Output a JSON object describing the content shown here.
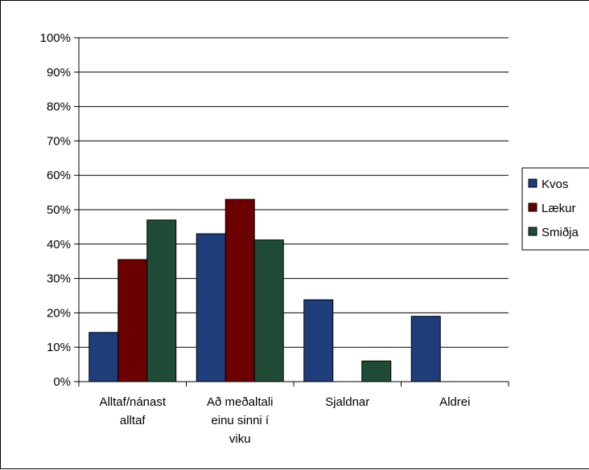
{
  "chart_data": {
    "type": "bar",
    "categories": [
      [
        "Alltaf/nánast",
        "alltaf"
      ],
      [
        "Að meðaltali",
        "einu sinni í",
        "viku"
      ],
      [
        "Sjaldnar"
      ],
      [
        "Aldrei"
      ]
    ],
    "series": [
      {
        "name": "Kvos",
        "color": "#1f3d7a",
        "values": [
          14.3,
          43.0,
          23.8,
          19.0
        ]
      },
      {
        "name": "Lækur",
        "color": "#6b0000",
        "values": [
          35.5,
          53.0,
          0,
          0
        ]
      },
      {
        "name": "Smiðja",
        "color": "#1f4a36",
        "values": [
          47.0,
          41.2,
          6.0,
          0
        ]
      }
    ],
    "ylim": [
      0,
      100
    ],
    "yticks": [
      0,
      10,
      20,
      30,
      40,
      50,
      60,
      70,
      80,
      90,
      100
    ],
    "ytick_suffix": "%",
    "grid": true,
    "legend_position": "right"
  }
}
